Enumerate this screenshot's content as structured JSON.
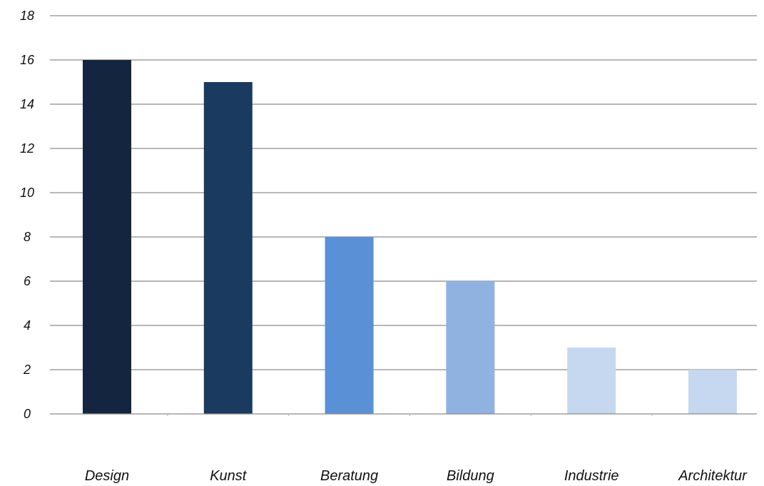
{
  "chart_data": {
    "type": "bar",
    "categories": [
      "Design",
      "Kunst",
      "Beratung",
      "Bildung",
      "Industrie",
      "Architektur"
    ],
    "values": [
      16,
      15,
      8,
      6,
      3,
      2
    ],
    "colors": [
      "#14263f",
      "#1a3a60",
      "#5a90d6",
      "#8fb2e1",
      "#c5d8ef",
      "#c5d8ef"
    ],
    "ylim": [
      0,
      18
    ],
    "yticks": [
      "0",
      "2",
      "4",
      "6",
      "8",
      "10",
      "12",
      "14",
      "16",
      "18"
    ],
    "grid": true,
    "legend": "none",
    "title": "",
    "xlabel": "",
    "ylabel": ""
  }
}
